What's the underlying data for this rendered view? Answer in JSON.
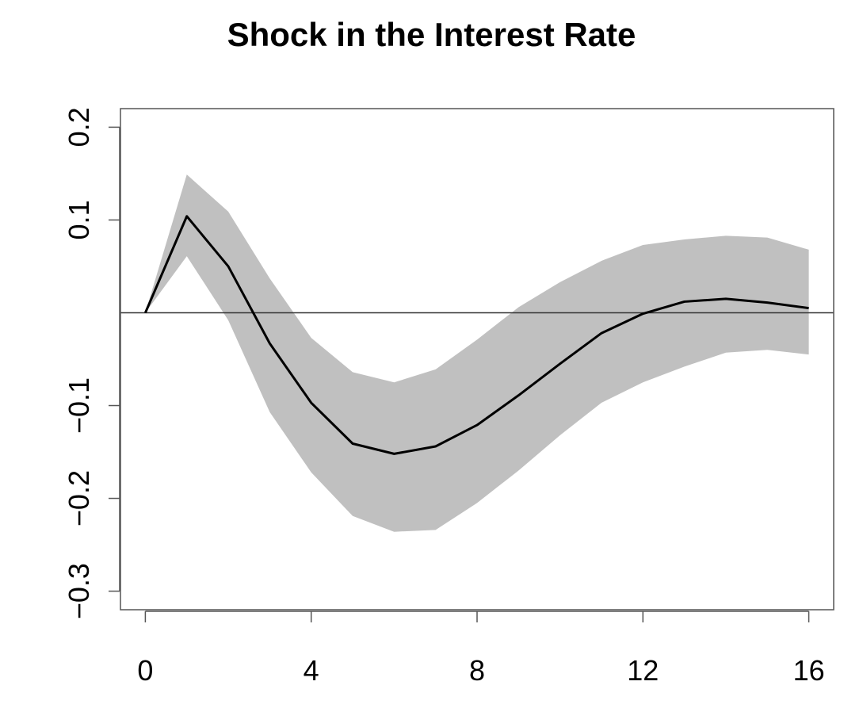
{
  "chart_data": {
    "type": "area",
    "title": "Shock in the Interest Rate",
    "xlabel": "",
    "ylabel": "",
    "x": [
      0,
      1,
      2,
      3,
      4,
      5,
      6,
      7,
      8,
      9,
      10,
      11,
      12,
      13,
      14,
      15,
      16
    ],
    "xlim": [
      -0.6,
      16.6
    ],
    "ylim": [
      -0.32,
      0.22
    ],
    "xticks": [
      0,
      4,
      8,
      12,
      16
    ],
    "xtick_labels": [
      "0",
      "4",
      "8",
      "12",
      "16"
    ],
    "yticks": [
      -0.3,
      -0.2,
      -0.1,
      0.1,
      0.2
    ],
    "ytick_labels": [
      "−0.3",
      "−0.2",
      "−0.1",
      "0.1",
      "0.2"
    ],
    "zero_line": 0,
    "grid": false,
    "series": [
      {
        "values": [
          0,
          0.104,
          0.05,
          -0.033,
          -0.097,
          -0.141,
          -0.152,
          -0.144,
          -0.121,
          -0.089,
          -0.055,
          -0.022,
          -0.001,
          0.012,
          0.015,
          0.011,
          0.005
        ],
        "color": "#000000"
      }
    ],
    "band": {
      "upper": [
        0,
        0.149,
        0.109,
        0.037,
        -0.027,
        -0.064,
        -0.075,
        -0.061,
        -0.029,
        0.006,
        0.033,
        0.056,
        0.073,
        0.079,
        0.083,
        0.081,
        0.068
      ],
      "lower": [
        0,
        0.061,
        -0.008,
        -0.107,
        -0.172,
        -0.219,
        -0.236,
        -0.234,
        -0.205,
        -0.17,
        -0.132,
        -0.097,
        -0.075,
        -0.058,
        -0.043,
        -0.04,
        -0.045
      ],
      "color": "#c0c0c0"
    }
  }
}
